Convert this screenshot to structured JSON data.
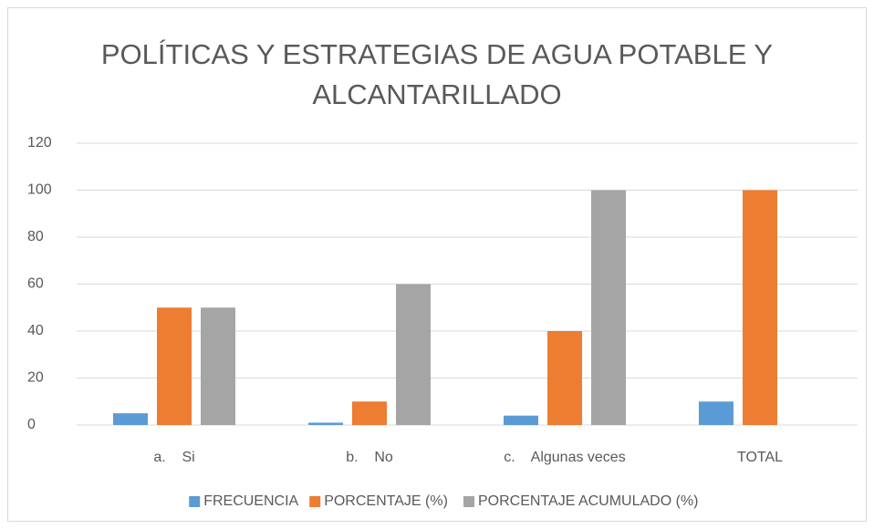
{
  "chart_data": {
    "type": "bar",
    "title": "POLÍTICAS Y ESTRATEGIAS DE AGUA POTABLE Y ALCANTARILLADO",
    "categories": [
      "a.    Si",
      "b.    No",
      "c.    Algunas veces",
      "TOTAL"
    ],
    "series": [
      {
        "name": "FRECUENCIA",
        "color": "#5b9bd5",
        "values": [
          5,
          1,
          4,
          10
        ]
      },
      {
        "name": "PORCENTAJE (%)",
        "color": "#ed7d31",
        "values": [
          50,
          10,
          40,
          100
        ]
      },
      {
        "name": "PORCENTAJE ACUMULADO (%)",
        "color": "#a5a5a5",
        "values": [
          50,
          60,
          100,
          null
        ]
      }
    ],
    "ylim": [
      0,
      120
    ],
    "yticks": [
      0,
      20,
      40,
      60,
      80,
      100,
      120
    ],
    "grid": true,
    "legend": "bottom"
  }
}
